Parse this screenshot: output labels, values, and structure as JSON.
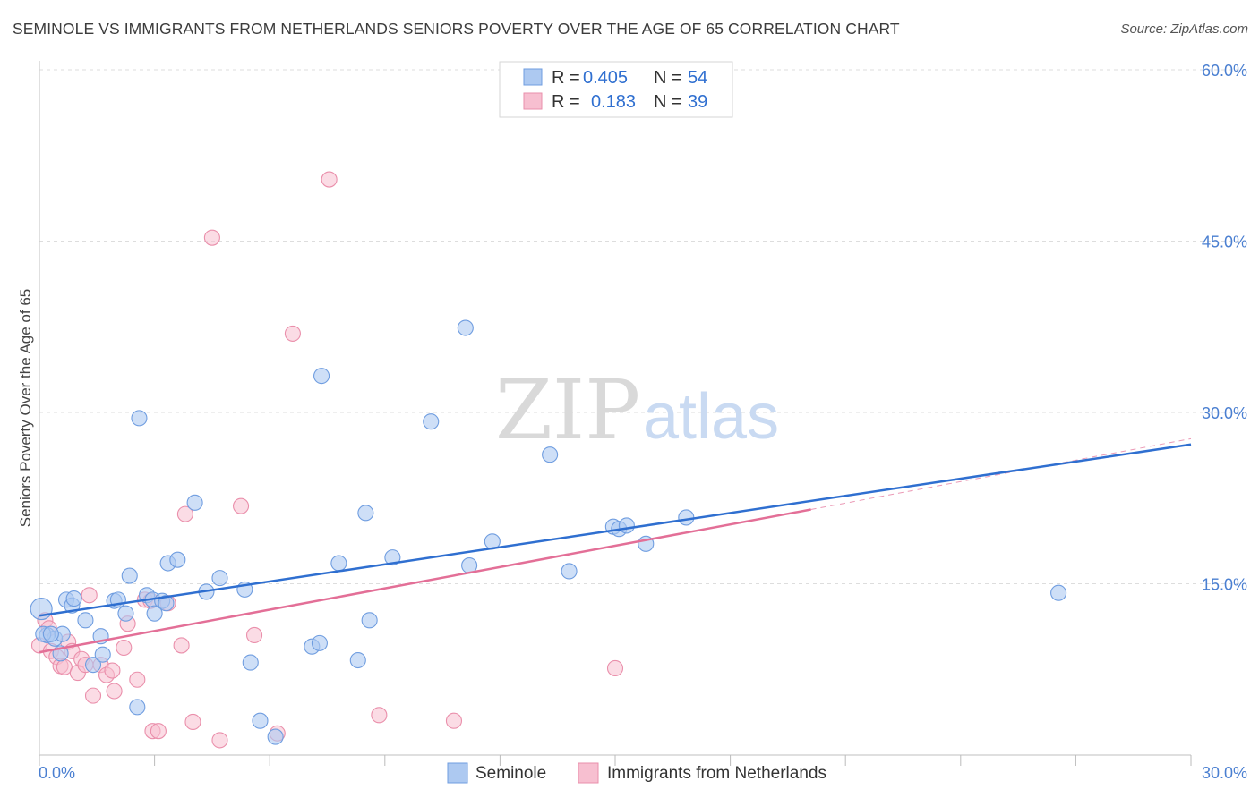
{
  "title": "SEMINOLE VS IMMIGRANTS FROM NETHERLANDS SENIORS POVERTY OVER THE AGE OF 65 CORRELATION CHART",
  "source": "Source: ZipAtlas.com",
  "watermark": {
    "zip": "ZIP",
    "atlas": "atlas"
  },
  "colors": {
    "seminole_fill": "#adc9f1",
    "seminole_stroke": "#6f9de0",
    "seminole_line": "#2f6fd0",
    "neth_fill": "#f7bfd0",
    "neth_stroke": "#ea8fab",
    "neth_line": "#e36f97",
    "axis_label": "#4a7fd1",
    "grid": "#dddddd"
  },
  "legend": {
    "rows": [
      {
        "r_label": "R =",
        "r_value": "0.405",
        "n_label": "N =",
        "n_value": "54"
      },
      {
        "r_label": "R =",
        "r_value": "0.183",
        "n_label": "N =",
        "n_value": "39"
      }
    ]
  },
  "bottom_legend": [
    "Seminole",
    "Immigrants from Netherlands"
  ],
  "chart_data": {
    "type": "scatter",
    "title": "SEMINOLE VS IMMIGRANTS FROM NETHERLANDS SENIORS POVERTY OVER THE AGE OF 65 CORRELATION CHART",
    "xlabel": "",
    "ylabel": "Seniors Poverty Over the Age of 65",
    "xlim": [
      0,
      30
    ],
    "ylim": [
      0,
      60
    ],
    "x_tick_labels": [
      "0.0%",
      "30.0%"
    ],
    "y_ticks": [
      15,
      30,
      45,
      60
    ],
    "y_tick_labels": [
      "15.0%",
      "30.0%",
      "45.0%",
      "60.0%"
    ],
    "grid": true,
    "legend_position": "top-center",
    "series": [
      {
        "name": "Seminole",
        "r": 0.405,
        "n": 54,
        "trend": {
          "x": [
            0,
            30
          ],
          "y": [
            12.2,
            27.2
          ],
          "dashed_extension_to": null
        },
        "points": [
          [
            0.05,
            12.8
          ],
          [
            0.2,
            10.5
          ],
          [
            0.4,
            10.2
          ],
          [
            0.55,
            8.9
          ],
          [
            0.6,
            10.6
          ],
          [
            0.7,
            13.6
          ],
          [
            0.85,
            13.1
          ],
          [
            0.9,
            13.7
          ],
          [
            1.2,
            11.8
          ],
          [
            1.4,
            7.9
          ],
          [
            1.6,
            10.4
          ],
          [
            1.65,
            8.8
          ],
          [
            1.95,
            13.5
          ],
          [
            2.05,
            13.6
          ],
          [
            2.25,
            12.4
          ],
          [
            2.35,
            15.7
          ],
          [
            2.55,
            4.2
          ],
          [
            2.6,
            29.5
          ],
          [
            2.8,
            14.0
          ],
          [
            2.95,
            13.6
          ],
          [
            3.0,
            12.4
          ],
          [
            3.2,
            13.5
          ],
          [
            3.3,
            13.3
          ],
          [
            3.35,
            16.8
          ],
          [
            3.6,
            17.1
          ],
          [
            4.05,
            22.1
          ],
          [
            4.35,
            14.3
          ],
          [
            4.7,
            15.5
          ],
          [
            5.35,
            14.5
          ],
          [
            5.5,
            8.1
          ],
          [
            5.75,
            3.0
          ],
          [
            6.15,
            1.6
          ],
          [
            7.1,
            9.5
          ],
          [
            7.3,
            9.8
          ],
          [
            7.35,
            33.2
          ],
          [
            7.8,
            16.8
          ],
          [
            8.3,
            8.3
          ],
          [
            8.5,
            21.2
          ],
          [
            8.6,
            11.8
          ],
          [
            9.2,
            17.3
          ],
          [
            10.2,
            29.2
          ],
          [
            11.1,
            37.4
          ],
          [
            11.2,
            16.6
          ],
          [
            11.8,
            18.7
          ],
          [
            13.3,
            26.3
          ],
          [
            13.8,
            16.1
          ],
          [
            14.95,
            20.0
          ],
          [
            15.1,
            19.8
          ],
          [
            15.3,
            20.1
          ],
          [
            15.8,
            18.5
          ],
          [
            16.85,
            20.8
          ],
          [
            26.55,
            14.2
          ],
          [
            0.1,
            10.6
          ],
          [
            0.3,
            10.6
          ]
        ]
      },
      {
        "name": "Immigrants from Netherlands",
        "r": 0.183,
        "n": 39,
        "trend": {
          "x": [
            0,
            20.1
          ],
          "y": [
            9.0,
            21.5
          ],
          "dashed_extension_to": [
            30,
            27.7
          ]
        },
        "points": [
          [
            0.0,
            9.6
          ],
          [
            0.15,
            11.8
          ],
          [
            0.25,
            11.1
          ],
          [
            0.3,
            9.1
          ],
          [
            0.45,
            8.6
          ],
          [
            0.55,
            7.8
          ],
          [
            0.65,
            7.7
          ],
          [
            0.75,
            9.9
          ],
          [
            0.85,
            9.1
          ],
          [
            1.0,
            7.2
          ],
          [
            1.1,
            8.4
          ],
          [
            1.2,
            7.9
          ],
          [
            1.3,
            14.0
          ],
          [
            1.4,
            5.2
          ],
          [
            1.6,
            7.9
          ],
          [
            1.75,
            7.0
          ],
          [
            1.9,
            7.4
          ],
          [
            1.95,
            5.6
          ],
          [
            2.2,
            9.4
          ],
          [
            2.3,
            11.5
          ],
          [
            2.55,
            6.6
          ],
          [
            2.75,
            13.6
          ],
          [
            2.95,
            2.1
          ],
          [
            3.1,
            2.1
          ],
          [
            3.35,
            13.3
          ],
          [
            3.7,
            9.6
          ],
          [
            3.8,
            21.1
          ],
          [
            4.0,
            2.9
          ],
          [
            4.5,
            45.3
          ],
          [
            4.7,
            1.3
          ],
          [
            5.25,
            21.8
          ],
          [
            5.6,
            10.5
          ],
          [
            6.2,
            1.9
          ],
          [
            6.6,
            36.9
          ],
          [
            7.55,
            50.4
          ],
          [
            8.85,
            3.5
          ],
          [
            10.8,
            3.0
          ],
          [
            15.0,
            7.6
          ],
          [
            2.9,
            13.5
          ]
        ]
      }
    ]
  }
}
